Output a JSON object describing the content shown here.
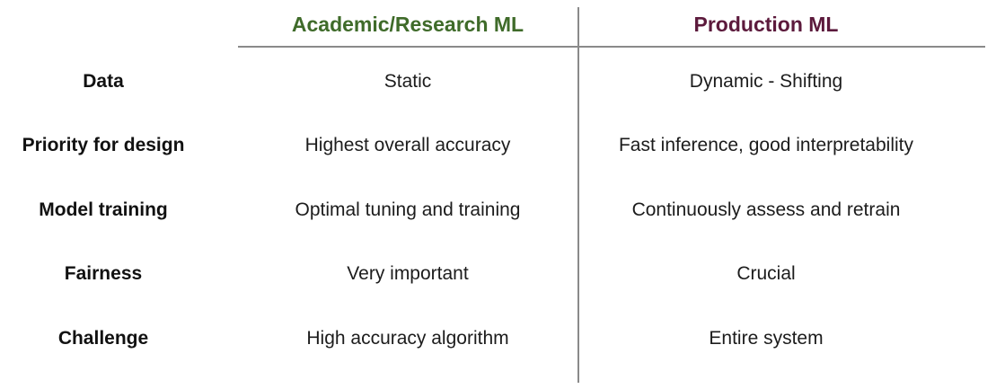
{
  "table": {
    "columns": {
      "academic": {
        "title": "Academic/Research ML",
        "color": "#3f6b2a"
      },
      "production": {
        "title": "Production ML",
        "color": "#5c1a3c"
      }
    },
    "rows": [
      {
        "label": "Data",
        "academic": "Static",
        "production": "Dynamic - Shifting"
      },
      {
        "label": "Priority for design",
        "academic": "Highest overall accuracy",
        "production": "Fast inference, good interpretability"
      },
      {
        "label": "Model training",
        "academic": "Optimal tuning and training",
        "production": "Continuously assess and retrain"
      },
      {
        "label": "Fairness",
        "academic": "Very important",
        "production": "Crucial"
      },
      {
        "label": "Challenge",
        "academic": "High accuracy algorithm",
        "production": "Entire system"
      }
    ]
  }
}
